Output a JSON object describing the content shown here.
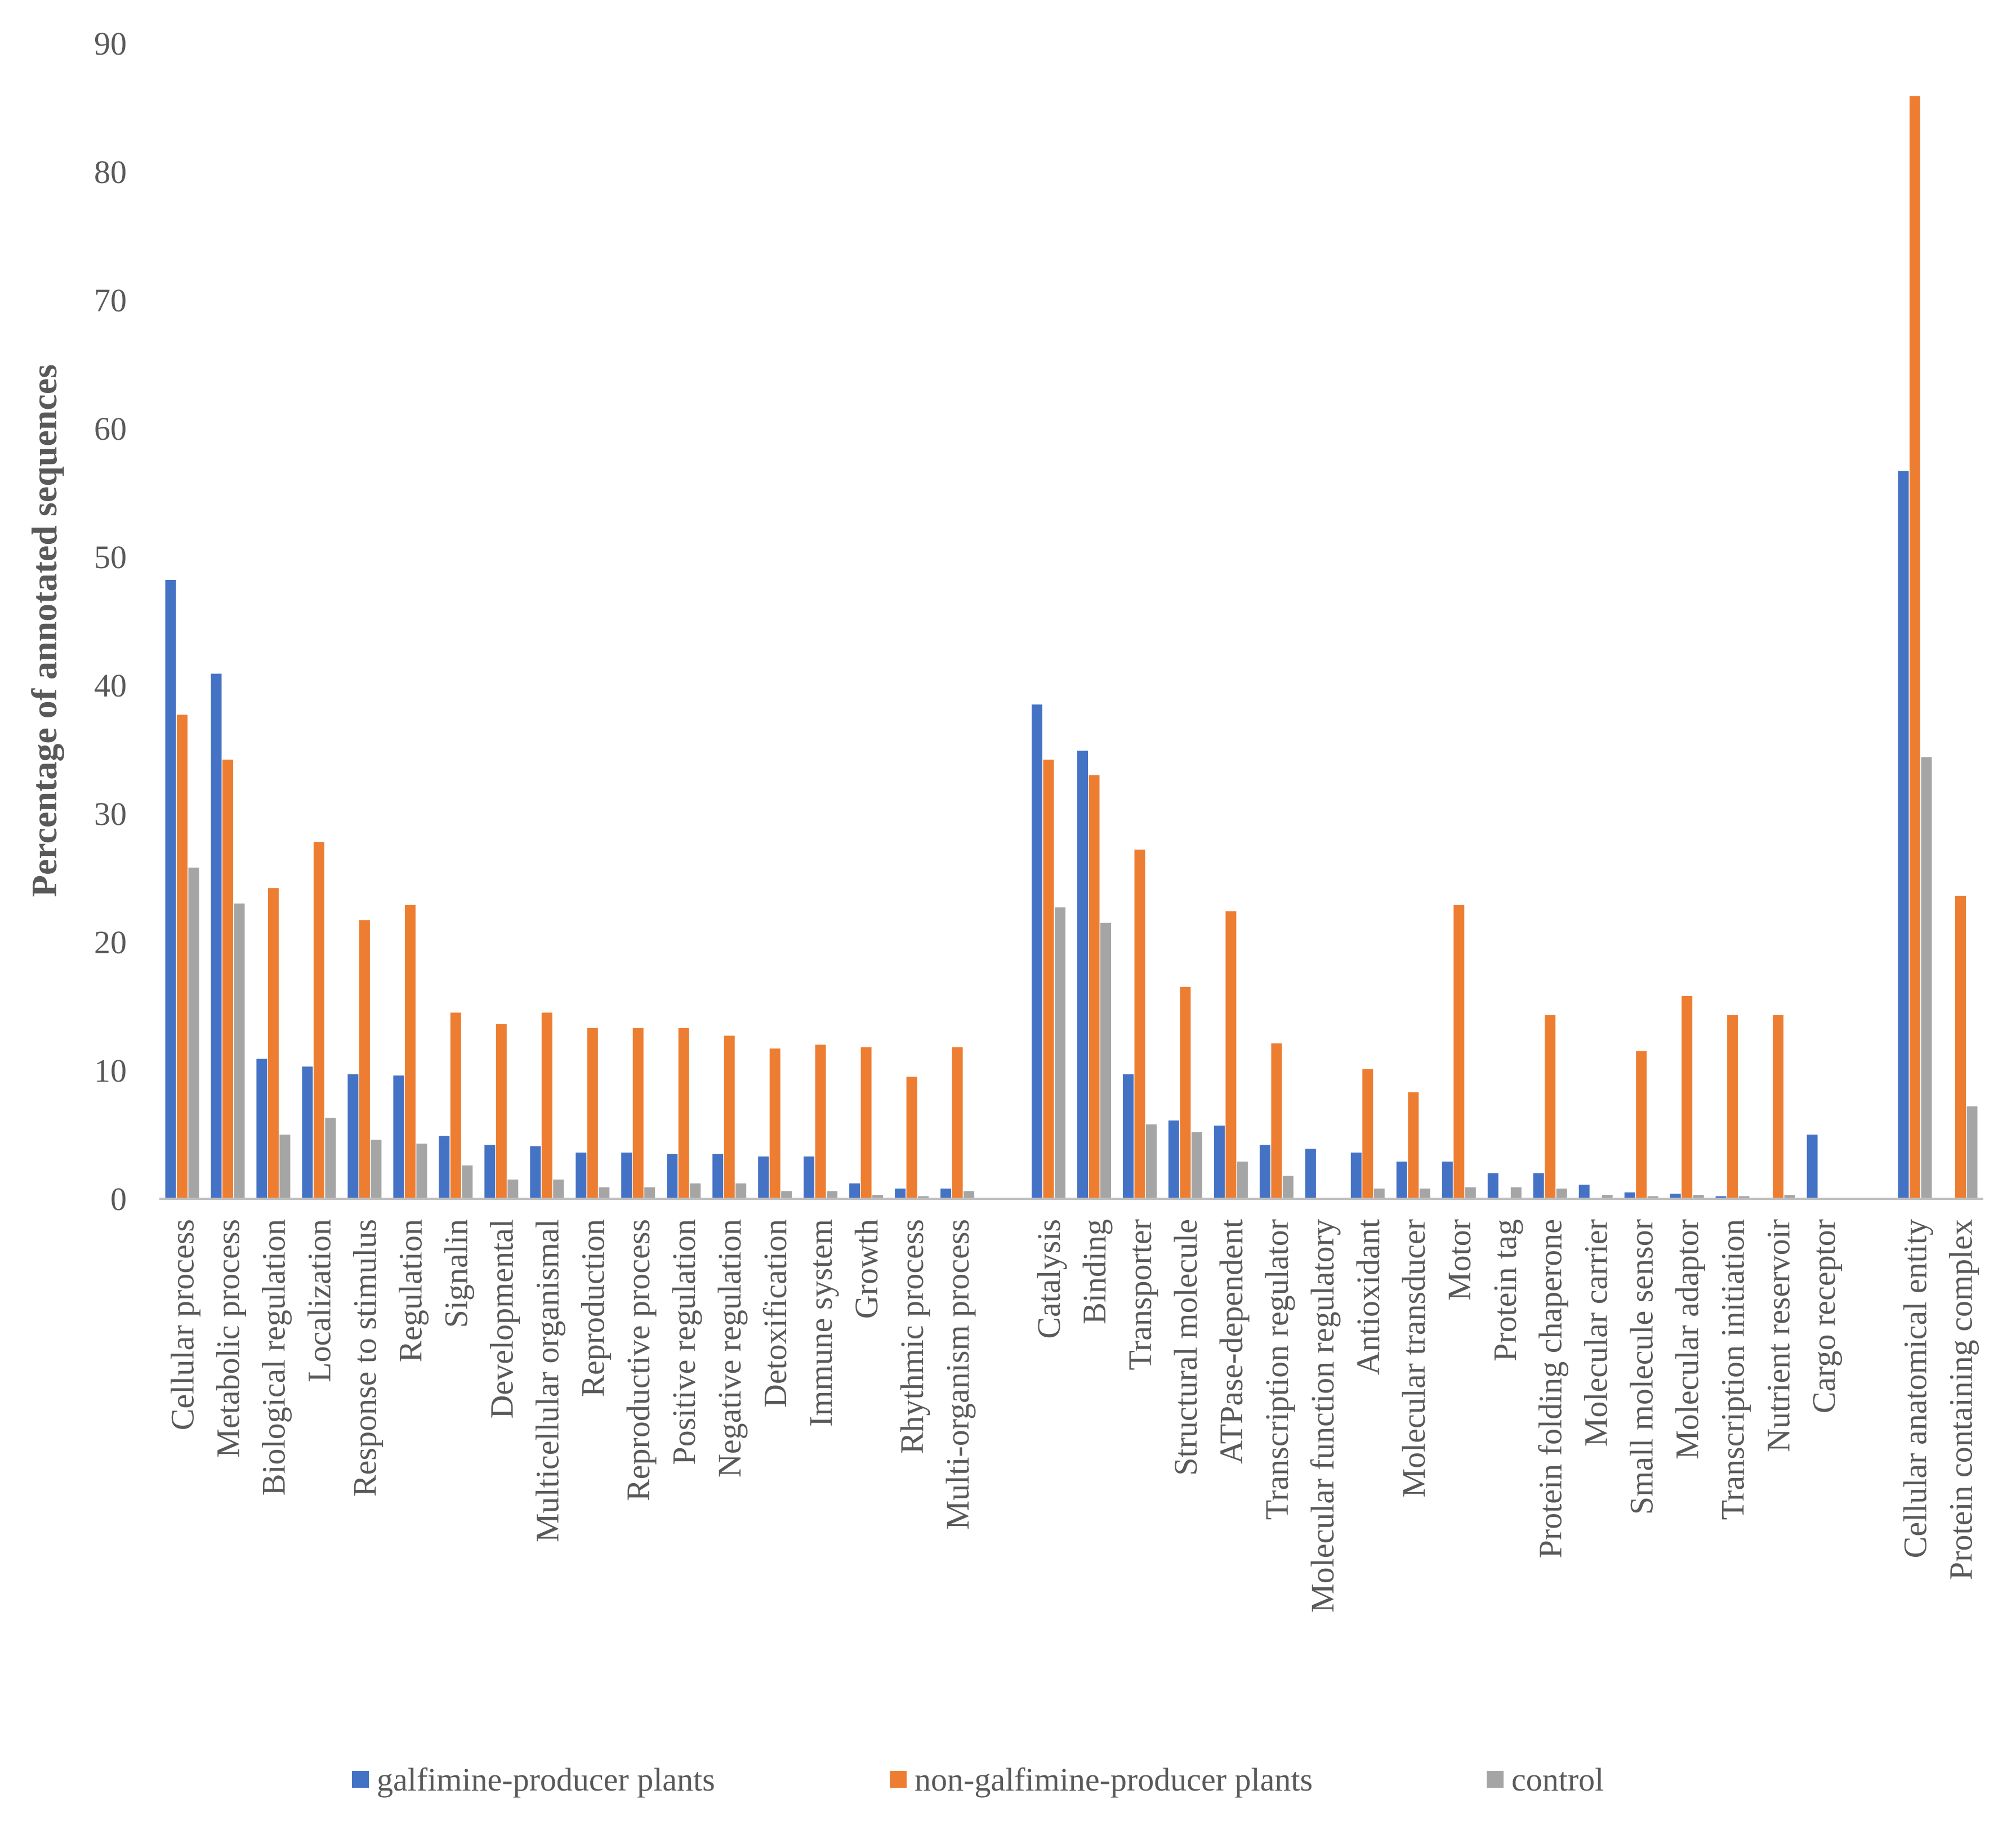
{
  "chart_data": {
    "type": "bar",
    "title": "",
    "xlabel": "",
    "ylabel": "Percentage of annotated sequences",
    "ylim": [
      0,
      90
    ],
    "yticks": [
      "0",
      "10",
      "20",
      "30",
      "40",
      "50",
      "60",
      "70",
      "80",
      "90"
    ],
    "grid": false,
    "legend_position": "bottom",
    "colors": {
      "galfimine": "#4472C4",
      "non_galfimine": "#ED7D31",
      "control": "#A5A5A5",
      "axis": "#BFBFBF"
    },
    "categories": [
      "Cellular process",
      "Metabolic process",
      "Biological regulation",
      "Localization",
      "Response to stimulus",
      "Regulation",
      "Signalin",
      "Developmental",
      "Multicellular organismal",
      "Reproduction",
      "Reproductive process",
      "Positive regulation",
      "Negative regulation",
      "Detoxification",
      "Immune system",
      "Growth",
      "Rhythmic process",
      "Multi-organism process",
      "",
      "Catalysis",
      "Binding",
      "Transporter",
      "Structural molecule",
      "ATPase-dependent",
      "Transcription regulator",
      "Molecular function regulatory",
      "Antioxidant",
      "Molecular transducer",
      "Motor",
      "Protein tag",
      "Protein folding chaperone",
      "Molecular carrier",
      "Small molecule sensor",
      "Molecular adaptor",
      "Transcription initiation",
      "Nutrient reservoir",
      "Cargo receptor",
      "",
      "Cellular anatomical entity",
      "Protein containing complex"
    ],
    "series": [
      {
        "name": "galfimine-producer plants",
        "color": "#4472C4",
        "values": [
          48.2,
          40.9,
          10.9,
          10.3,
          9.7,
          9.6,
          4.9,
          4.2,
          4.1,
          3.6,
          3.6,
          3.5,
          3.5,
          3.3,
          3.3,
          1.2,
          0.8,
          0.8,
          null,
          38.5,
          34.9,
          9.7,
          6.1,
          5.7,
          4.2,
          3.9,
          3.6,
          2.9,
          2.9,
          2.0,
          2.0,
          1.1,
          0.5,
          0.4,
          0.2,
          0.0,
          5.0,
          null,
          56.7,
          0.0
        ]
      },
      {
        "name": "non-galfimine-producer plants",
        "color": "#ED7D31",
        "values": [
          37.7,
          34.2,
          24.2,
          27.8,
          21.7,
          22.9,
          14.5,
          13.6,
          14.5,
          13.3,
          13.3,
          13.3,
          12.7,
          11.7,
          12.0,
          11.8,
          9.5,
          11.8,
          null,
          34.2,
          33.0,
          27.2,
          16.5,
          22.4,
          12.1,
          0.0,
          10.1,
          8.3,
          22.9,
          0.0,
          14.3,
          0.0,
          11.5,
          15.8,
          14.3,
          14.3,
          0.0,
          null,
          85.9,
          23.6
        ]
      },
      {
        "name": "control",
        "color": "#A5A5A5",
        "values": [
          25.8,
          23.0,
          5.0,
          6.3,
          4.6,
          4.3,
          2.6,
          1.5,
          1.5,
          0.9,
          0.9,
          1.2,
          1.2,
          0.6,
          0.6,
          0.3,
          0.2,
          0.6,
          null,
          22.7,
          21.5,
          5.8,
          5.2,
          2.9,
          1.8,
          0.0,
          0.8,
          0.8,
          0.9,
          0.9,
          0.8,
          0.3,
          0.2,
          0.3,
          0.2,
          0.3,
          0.0,
          null,
          34.4,
          7.2
        ]
      }
    ]
  },
  "legend": {
    "items": [
      {
        "label": "galfimine-producer plants",
        "color": "#4472C4"
      },
      {
        "label": "non-galfimine-producer plants",
        "color": "#ED7D31"
      },
      {
        "label": "control",
        "color": "#A5A5A5"
      }
    ]
  }
}
